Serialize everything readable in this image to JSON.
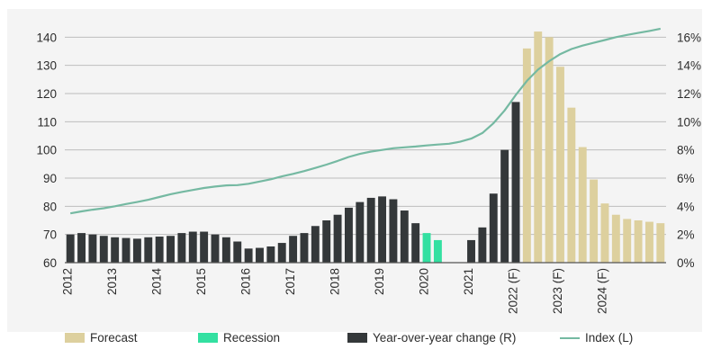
{
  "chart_data": {
    "type": "bar",
    "x_labels": [
      "2012",
      "2013",
      "2014",
      "2015",
      "2016",
      "2017",
      "2018",
      "2019",
      "2020",
      "2021",
      "2022 (F)",
      "2023 (F)",
      "2024 (F)"
    ],
    "left_axis": {
      "ticks": [
        "60",
        "70",
        "80",
        "90",
        "100",
        "110",
        "120",
        "130",
        "140"
      ],
      "ylim": [
        60,
        150
      ]
    },
    "right_axis": {
      "ticks": [
        "0%",
        "2%",
        "4%",
        "6%",
        "8%",
        "10%",
        "12%",
        "14%",
        "16%"
      ],
      "ylim": [
        0,
        18
      ]
    },
    "series": [
      {
        "name": "Year-over-year change (R)",
        "axis": "right",
        "values": [
          2.0,
          2.1,
          2.0,
          1.9,
          1.8,
          1.75,
          1.7,
          1.8,
          1.85,
          1.9,
          2.1,
          2.2,
          2.2,
          2.0,
          1.8,
          1.5,
          1.0,
          1.05,
          1.15,
          1.4,
          1.9,
          2.1,
          2.6,
          3.0,
          3.4,
          3.9,
          4.3,
          4.6,
          4.7,
          4.5,
          3.7,
          2.8,
          null,
          null,
          null,
          null,
          1.6,
          2.5,
          4.9,
          8.0,
          11.4,
          null,
          null,
          null,
          null,
          null,
          null,
          null,
          null,
          null,
          null,
          null,
          null,
          null
        ]
      },
      {
        "name": "Recession",
        "axis": "right",
        "values": [
          null,
          null,
          null,
          null,
          null,
          null,
          null,
          null,
          null,
          null,
          null,
          null,
          null,
          null,
          null,
          null,
          null,
          null,
          null,
          null,
          null,
          null,
          null,
          null,
          null,
          null,
          null,
          null,
          null,
          null,
          null,
          null,
          2.1,
          1.6,
          null,
          null,
          null,
          null,
          null,
          null,
          null,
          null,
          null,
          null,
          null,
          null,
          null,
          null,
          null,
          null,
          null,
          null,
          null,
          null
        ]
      },
      {
        "name": "Forecast",
        "axis": "right",
        "values": [
          null,
          null,
          null,
          null,
          null,
          null,
          null,
          null,
          null,
          null,
          null,
          null,
          null,
          null,
          null,
          null,
          null,
          null,
          null,
          null,
          null,
          null,
          null,
          null,
          null,
          null,
          null,
          null,
          null,
          null,
          null,
          null,
          null,
          null,
          null,
          null,
          null,
          null,
          null,
          null,
          null,
          15.2,
          16.4,
          16.0,
          13.9,
          11.0,
          8.2,
          5.9,
          4.2,
          3.4,
          3.1,
          3.0,
          2.9,
          2.8
        ]
      },
      {
        "name": "Index (L)",
        "axis": "left",
        "type": "line",
        "values": [
          77.5,
          78.2,
          78.8,
          79.3,
          80.0,
          80.8,
          81.5,
          82.3,
          83.3,
          84.3,
          85.1,
          85.8,
          86.5,
          87.0,
          87.4,
          87.5,
          88.0,
          88.8,
          89.6,
          90.6,
          91.5,
          92.5,
          93.6,
          94.8,
          96.1,
          97.5,
          98.6,
          99.4,
          100.0,
          100.6,
          100.9,
          101.2,
          101.6,
          101.9,
          102.2,
          102.9,
          104.0,
          106.0,
          109.5,
          114.0,
          119.5,
          124.5,
          128.5,
          131.5,
          134.0,
          135.8,
          137.0,
          138.0,
          139.0,
          140.0,
          140.8,
          141.5,
          142.2,
          143.0
        ]
      }
    ],
    "period_label_positions": [
      0,
      4,
      8,
      12,
      16,
      20,
      24,
      28,
      32,
      36,
      40,
      44,
      48
    ],
    "colors": {
      "yoy": "#34383a",
      "recession": "#33e0a1",
      "forecast": "#ddd09e",
      "index": "#75b9a2",
      "grid": "#bdbdbd",
      "axis": "#555555"
    }
  },
  "legend": {
    "forecast": "Forecast",
    "recession": "Recession",
    "yoy": "Year-over-year change (R)",
    "index": "Index (L)"
  }
}
